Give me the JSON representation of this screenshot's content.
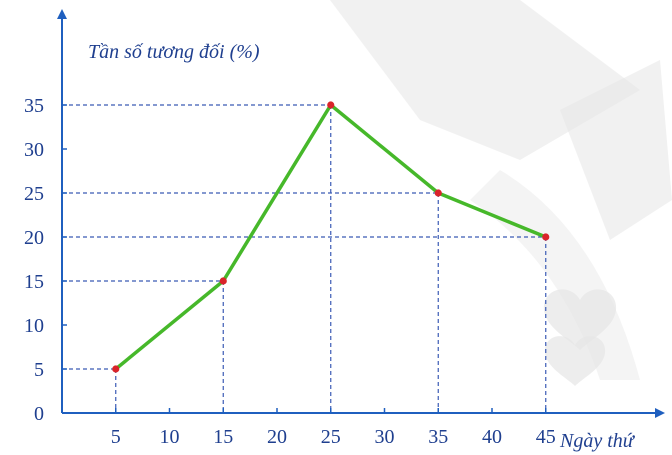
{
  "chart_data": {
    "type": "line",
    "ylabel": "Tần số tương đối (%)",
    "xlabel": "Ngày thứ",
    "x_ticks": [
      "5",
      "10",
      "15",
      "20",
      "25",
      "30",
      "35",
      "40",
      "45"
    ],
    "y_ticks": [
      "0",
      "5",
      "10",
      "15",
      "20",
      "25",
      "30",
      "35"
    ],
    "xlim": [
      0,
      52
    ],
    "ylim": [
      0,
      40
    ],
    "series": [
      {
        "x": [
          5,
          15,
          25,
          35,
          45
        ],
        "values": [
          5,
          15,
          35,
          25,
          20
        ]
      }
    ],
    "grid": false,
    "colors": {
      "line": "#46b82a",
      "points": "#d9242a",
      "axes": "#1f5fbf",
      "text": "#1f3f8f",
      "guides": "#3b5bb5"
    }
  }
}
